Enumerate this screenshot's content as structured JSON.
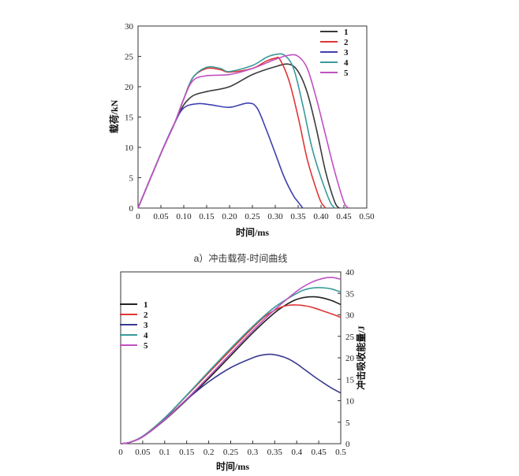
{
  "caption_a": "a）冲击载荷-时间曲线",
  "chart_data": [
    {
      "type": "line",
      "xlabel": "时间/ms",
      "ylabel": "载荷/kN",
      "xlim": [
        0,
        0.5
      ],
      "ylim": [
        0,
        30
      ],
      "x_ticks": [
        "0",
        "0.05",
        "0.10",
        "0.15",
        "0.20",
        "0.25",
        "0.30",
        "0.35",
        "0.40",
        "0.45",
        "0.50"
      ],
      "y_ticks": [
        "0",
        "5",
        "10",
        "15",
        "20",
        "25",
        "30"
      ],
      "legend_position": "top-right",
      "grid": false,
      "series": [
        {
          "name": "1",
          "color": "#3a3a3a",
          "x": [
            0,
            0.05,
            0.08,
            0.1,
            0.12,
            0.15,
            0.2,
            0.25,
            0.3,
            0.33,
            0.35,
            0.37,
            0.39,
            0.41,
            0.43,
            0.44
          ],
          "y": [
            0,
            9,
            14,
            17,
            18.5,
            19.2,
            20,
            22,
            23.3,
            23.7,
            22.5,
            19,
            13,
            6,
            1,
            0
          ]
        },
        {
          "name": "2",
          "color": "#e03535",
          "x": [
            0,
            0.05,
            0.08,
            0.1,
            0.12,
            0.15,
            0.18,
            0.2,
            0.25,
            0.28,
            0.3,
            0.31,
            0.33,
            0.35,
            0.37,
            0.39,
            0.4,
            0.41
          ],
          "y": [
            0,
            9,
            14,
            18,
            21.5,
            23,
            22.8,
            22.4,
            23,
            24.2,
            24.7,
            24.5,
            21,
            15,
            8,
            3,
            1,
            0
          ]
        },
        {
          "name": "3",
          "color": "#4040b0",
          "x": [
            0,
            0.05,
            0.08,
            0.1,
            0.13,
            0.16,
            0.2,
            0.24,
            0.26,
            0.28,
            0.3,
            0.32,
            0.34,
            0.35,
            0.36
          ],
          "y": [
            0,
            9,
            14,
            16.5,
            17.2,
            17.0,
            16.6,
            17.3,
            16.5,
            13,
            9,
            5,
            2,
            1,
            0
          ]
        },
        {
          "name": "4",
          "color": "#3a9a9a",
          "x": [
            0,
            0.05,
            0.08,
            0.1,
            0.12,
            0.15,
            0.18,
            0.2,
            0.25,
            0.28,
            0.3,
            0.32,
            0.34,
            0.36,
            0.38,
            0.4,
            0.42,
            0.43
          ],
          "y": [
            0,
            9,
            14,
            18,
            21.5,
            23.2,
            23,
            22.5,
            23.5,
            24.8,
            25.3,
            25.2,
            23,
            17,
            10,
            5,
            1,
            0
          ]
        },
        {
          "name": "5",
          "color": "#c050c0",
          "x": [
            0,
            0.05,
            0.08,
            0.1,
            0.12,
            0.15,
            0.2,
            0.25,
            0.3,
            0.33,
            0.35,
            0.37,
            0.39,
            0.41,
            0.43,
            0.45,
            0.46
          ],
          "y": [
            0,
            9,
            14,
            18,
            21,
            21.8,
            22,
            23,
            24.5,
            25.2,
            25,
            23,
            18,
            12,
            6,
            1,
            0
          ]
        }
      ]
    },
    {
      "type": "line",
      "xlabel": "时间/ms",
      "ylabel": "冲击吸收能量/J",
      "ylabel_side": "right",
      "xlim": [
        0,
        0.5
      ],
      "ylim": [
        0,
        40
      ],
      "x_ticks": [
        "0",
        "0.05",
        "0.1",
        "0.15",
        "0.2",
        "0.25",
        "0.3",
        "0.35",
        "0.4",
        "0.45",
        "0.5"
      ],
      "y_ticks": [
        "0",
        "5",
        "10",
        "15",
        "20",
        "25",
        "30",
        "35",
        "40"
      ],
      "legend_position": "top-left",
      "grid": false,
      "series": [
        {
          "name": "1",
          "color": "#222222",
          "x": [
            0,
            0.02,
            0.05,
            0.1,
            0.15,
            0.2,
            0.25,
            0.3,
            0.35,
            0.38,
            0.4,
            0.42,
            0.44,
            0.46,
            0.48,
            0.5
          ],
          "y": [
            0,
            0.3,
            1.6,
            5.5,
            10.2,
            15.2,
            20.5,
            25.8,
            30.5,
            32.6,
            33.6,
            34.1,
            34.2,
            33.9,
            33.3,
            32.4
          ]
        },
        {
          "name": "2",
          "color": "#e03535",
          "x": [
            0,
            0.02,
            0.05,
            0.1,
            0.15,
            0.2,
            0.25,
            0.3,
            0.33,
            0.36,
            0.38,
            0.4,
            0.42,
            0.44,
            0.46,
            0.48,
            0.5
          ],
          "y": [
            0,
            0.3,
            1.7,
            6,
            11.2,
            16.5,
            21.8,
            27,
            29.8,
            31.6,
            32.2,
            32.3,
            32.1,
            31.6,
            30.9,
            30.2,
            29.4
          ]
        },
        {
          "name": "3",
          "color": "#3a3a90",
          "x": [
            0,
            0.02,
            0.05,
            0.1,
            0.15,
            0.2,
            0.25,
            0.3,
            0.32,
            0.34,
            0.36,
            0.38,
            0.4,
            0.42,
            0.44,
            0.46,
            0.48,
            0.5
          ],
          "y": [
            0,
            0.3,
            1.7,
            5.7,
            10.3,
            14.4,
            17.7,
            20,
            20.6,
            20.8,
            20.5,
            19.8,
            18.6,
            17.1,
            15.6,
            14.2,
            12.9,
            11.8
          ]
        },
        {
          "name": "4",
          "color": "#3a9a9a",
          "x": [
            0,
            0.02,
            0.05,
            0.1,
            0.15,
            0.2,
            0.25,
            0.3,
            0.35,
            0.4,
            0.42,
            0.44,
            0.46,
            0.48,
            0.5
          ],
          "y": [
            0,
            0.3,
            1.7,
            6,
            11.3,
            16.8,
            22.2,
            27.3,
            31.8,
            35,
            35.9,
            36.3,
            36.3,
            36,
            35.3
          ]
        },
        {
          "name": "5",
          "color": "#c050c0",
          "x": [
            0,
            0.02,
            0.05,
            0.1,
            0.15,
            0.2,
            0.25,
            0.3,
            0.35,
            0.4,
            0.43,
            0.46,
            0.48,
            0.5
          ],
          "y": [
            0,
            0.3,
            1.6,
            5.6,
            10.4,
            15.6,
            21,
            26.3,
            31.2,
            35.5,
            37.4,
            38.5,
            38.7,
            38.3
          ]
        }
      ]
    }
  ]
}
